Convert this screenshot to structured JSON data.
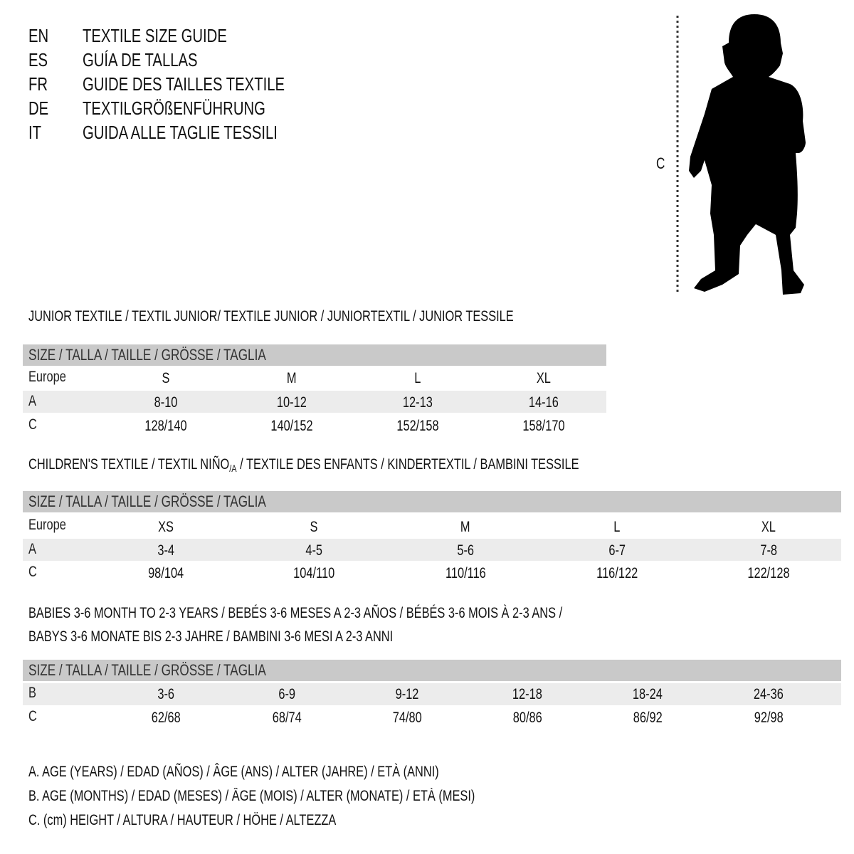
{
  "languages": [
    {
      "code": "EN",
      "title": "TEXTILE SIZE GUIDE"
    },
    {
      "code": "ES",
      "title": "GUÍA DE TALLAS"
    },
    {
      "code": "FR",
      "title": "GUIDE DES TAILLES TEXTILE"
    },
    {
      "code": "DE",
      "title": "TEXTILGRÖßENFÜHRUNG"
    },
    {
      "code": "IT",
      "title": "GUIDA ALLE TAGLIE TESSILI"
    }
  ],
  "figure": {
    "measure_label": "C",
    "icon": "child-silhouette-icon"
  },
  "size_header": "SIZE / TALLA / TAILLE / GRÖSSE / TAGLIA",
  "junior": {
    "title": "JUNIOR TEXTILE / TEXTIL JUNIOR/ TEXTILE JUNIOR / JUNIORTEXTIL / JUNIOR TESSILE",
    "rows": [
      {
        "label": "Europe",
        "values": [
          "S",
          "M",
          "L",
          "XL"
        ]
      },
      {
        "label": "A",
        "values": [
          "8-10",
          "10-12",
          "12-13",
          "14-16"
        ]
      },
      {
        "label": "C",
        "values": [
          "128/140",
          "140/152",
          "152/158",
          "158/170"
        ]
      }
    ]
  },
  "children": {
    "title_a": "CHILDREN'S TEXTILE / TEXTIL NIÑO",
    "title_sub": "/A",
    "title_b": " / TEXTILE DES ENFANTS / KINDERTEXTIL / BAMBINI TESSILE",
    "rows": [
      {
        "label": "Europe",
        "values": [
          "XS",
          "S",
          "M",
          "L",
          "XL"
        ]
      },
      {
        "label": "A",
        "values": [
          "3-4",
          "4-5",
          "5-6",
          "6-7",
          "7-8"
        ]
      },
      {
        "label": "C",
        "values": [
          "98/104",
          "104/110",
          "110/116",
          "116/122",
          "122/128"
        ]
      }
    ]
  },
  "babies": {
    "title_line1": "BABIES 3-6 MONTH TO 2-3 YEARS / BEBÉS 3-6 MESES A 2-3 AÑOS / BÉBÉS 3-6 MOIS À 2-3 ANS /",
    "title_line2": "BABYS 3-6 MONATE BIS 2-3 JAHRE / BAMBINI 3-6 MESI A 2-3 ANNI",
    "rows": [
      {
        "label": "B",
        "values": [
          "3-6",
          "6-9",
          "9-12",
          "12-18",
          "18-24",
          "24-36"
        ]
      },
      {
        "label": "C",
        "values": [
          "62/68",
          "68/74",
          "74/80",
          "80/86",
          "86/92",
          "92/98"
        ]
      }
    ]
  },
  "legend": [
    "A. AGE (YEARS) / EDAD (AÑOS) / ÂGE (ANS) / ALTER (JAHRE) / ETÀ (ANNI)",
    "B. AGE (MONTHS) / EDAD (MESES) / ÂGE (MOIS) / ALTER (MONATE) / ETÀ (MESI)",
    "C. (cm) HEIGHT / ALTURA / HAUTEUR / HÖHE / ALTEZZA"
  ]
}
